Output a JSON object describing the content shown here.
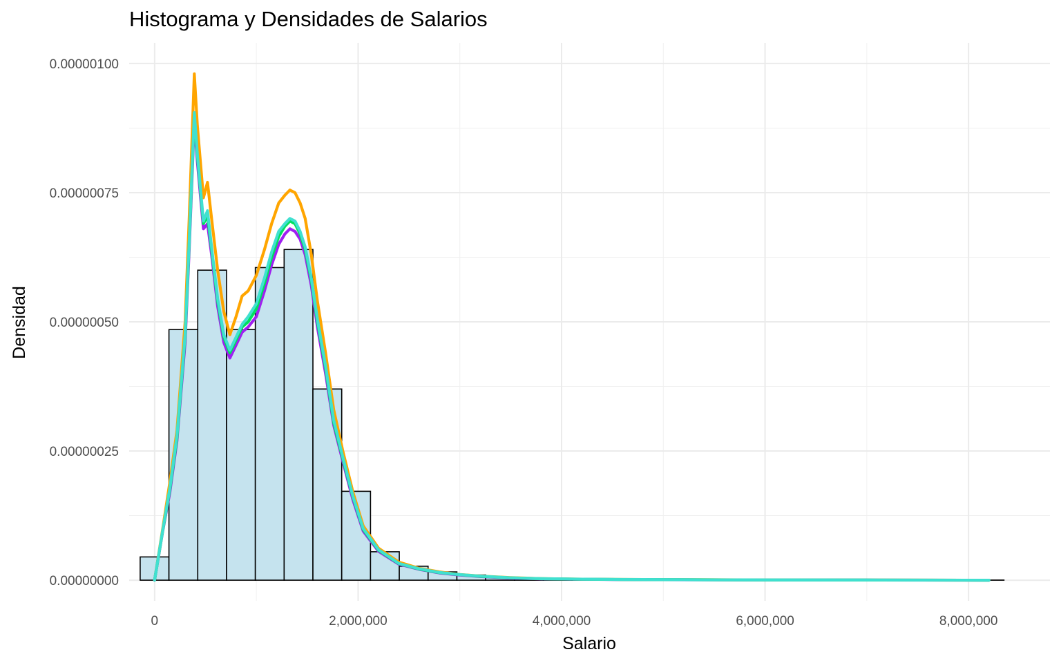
{
  "chart_data": {
    "type": "bar",
    "title": "Histograma y Densidades de Salarios",
    "xlabel": "Salario",
    "ylabel": "Densidad",
    "xlim": [
      -250000,
      8800000
    ],
    "ylim": [
      -4e-08,
      1.04e-06
    ],
    "grid": true,
    "legend": "none",
    "x_ticks": [
      {
        "value": 0,
        "label": "0"
      },
      {
        "value": 2000000,
        "label": "2,000,000"
      },
      {
        "value": 4000000,
        "label": "4,000,000"
      },
      {
        "value": 6000000,
        "label": "6,000,000"
      },
      {
        "value": 8000000,
        "label": "8,000,000"
      }
    ],
    "y_ticks": [
      {
        "value": 0,
        "label": "0.00000000"
      },
      {
        "value": 2.5e-07,
        "label": "0.00000025"
      },
      {
        "value": 5e-07,
        "label": "0.00000050"
      },
      {
        "value": 7.5e-07,
        "label": "0.00000075"
      },
      {
        "value": 1e-06,
        "label": "0.00000100"
      }
    ],
    "histogram": {
      "fill": "#c5e3ee",
      "stroke": "#000000",
      "bin_width": 283000,
      "bin_starts": [
        -142000,
        141000,
        424000,
        707000,
        990000,
        1273000,
        1556000,
        1839000,
        2122000,
        2405000,
        2688000,
        2971000,
        3254000,
        3537000,
        3820000,
        4103000,
        4386000,
        4669000,
        4952000,
        5235000,
        5518000,
        5801000,
        6084000,
        6367000,
        6650000,
        6933000,
        7216000,
        7499000,
        7782000,
        8065000
      ],
      "values": [
        4.5e-08,
        4.85e-07,
        6e-07,
        4.85e-07,
        6.05e-07,
        6.4e-07,
        3.7e-07,
        1.72e-07,
        5.5e-08,
        2.7e-08,
        1.6e-08,
        1e-08,
        6e-09,
        4e-09,
        3e-09,
        2e-09,
        1.5e-09,
        1e-09,
        8e-10,
        6e-10,
        5e-10,
        4e-10,
        3e-10,
        3e-10,
        2e-10,
        2e-10,
        2e-10,
        2e-10,
        2e-10,
        2e-10
      ]
    },
    "series": [
      {
        "color": "#ffa500",
        "x": [
          0,
          80000,
          150000,
          220000,
          300000,
          340000,
          390000,
          420000,
          480000,
          520000,
          560000,
          620000,
          680000,
          740000,
          800000,
          860000,
          920000,
          1000000,
          1080000,
          1150000,
          1220000,
          1280000,
          1330000,
          1380000,
          1430000,
          1480000,
          1540000,
          1600000,
          1680000,
          1760000,
          1850000,
          1950000,
          2050000,
          2200000,
          2400000,
          2600000,
          2800000,
          3000000,
          3200000,
          3500000,
          3800000,
          4200000,
          4600000,
          5200000,
          6000000,
          7000000,
          8200000
        ],
        "y": [
          0,
          1e-07,
          1.9e-07,
          2.9e-07,
          5e-07,
          7e-07,
          9.8e-07,
          8.8e-07,
          7.4e-07,
          7.7e-07,
          7e-07,
          6e-07,
          5.2e-07,
          4.75e-07,
          5.1e-07,
          5.5e-07,
          5.6e-07,
          5.9e-07,
          6.4e-07,
          6.9e-07,
          7.3e-07,
          7.45e-07,
          7.55e-07,
          7.5e-07,
          7.3e-07,
          7e-07,
          6.3e-07,
          5.4e-07,
          4.4e-07,
          3.3e-07,
          2.5e-07,
          1.7e-07,
          1.05e-07,
          6.2e-08,
          3.5e-08,
          2.3e-08,
          1.6e-08,
          1.1e-08,
          8e-09,
          5e-09,
          3e-09,
          2e-09,
          1.5e-09,
          1e-09,
          5e-10,
          3e-10,
          0
        ]
      },
      {
        "color": "#a020f0",
        "x": [
          0,
          80000,
          150000,
          220000,
          300000,
          340000,
          390000,
          420000,
          480000,
          520000,
          560000,
          620000,
          680000,
          740000,
          800000,
          860000,
          920000,
          1000000,
          1080000,
          1150000,
          1220000,
          1280000,
          1330000,
          1380000,
          1430000,
          1480000,
          1540000,
          1600000,
          1680000,
          1760000,
          1850000,
          1950000,
          2050000,
          2200000,
          2400000,
          2600000,
          2800000,
          3000000,
          3200000,
          3500000,
          3800000,
          4200000,
          4600000,
          5200000,
          6000000,
          7000000,
          8200000
        ],
        "y": [
          0,
          9.5e-08,
          1.7e-07,
          2.7e-07,
          4.6e-07,
          6.4e-07,
          8.9e-07,
          8.1e-07,
          6.8e-07,
          6.9e-07,
          6.3e-07,
          5.3e-07,
          4.6e-07,
          4.3e-07,
          4.55e-07,
          4.8e-07,
          4.9e-07,
          5.1e-07,
          5.6e-07,
          6.1e-07,
          6.5e-07,
          6.7e-07,
          6.8e-07,
          6.75e-07,
          6.6e-07,
          6.3e-07,
          5.7e-07,
          4.9e-07,
          4e-07,
          3e-07,
          2.3e-07,
          1.55e-07,
          9.5e-08,
          5.6e-08,
          3.1e-08,
          2.1e-08,
          1.4e-08,
          1e-08,
          7e-09,
          4e-09,
          2.5e-09,
          1.8e-09,
          1.2e-09,
          8e-10,
          4e-10,
          2e-10,
          0
        ]
      },
      {
        "color": "#00e060",
        "x": [
          0,
          80000,
          150000,
          220000,
          300000,
          340000,
          390000,
          420000,
          480000,
          520000,
          560000,
          620000,
          680000,
          740000,
          800000,
          860000,
          920000,
          1000000,
          1080000,
          1150000,
          1220000,
          1280000,
          1330000,
          1380000,
          1430000,
          1480000,
          1540000,
          1600000,
          1680000,
          1760000,
          1850000,
          1950000,
          2050000,
          2200000,
          2400000,
          2600000,
          2800000,
          3000000,
          3200000,
          3500000,
          3800000,
          4200000,
          4600000,
          5200000,
          6000000,
          7000000,
          8200000
        ],
        "y": [
          0,
          9.6e-08,
          1.75e-07,
          2.75e-07,
          4.7e-07,
          6.5e-07,
          9e-07,
          8.2e-07,
          6.9e-07,
          7.05e-07,
          6.4e-07,
          5.4e-07,
          4.7e-07,
          4.4e-07,
          4.65e-07,
          4.9e-07,
          5e-07,
          5.25e-07,
          5.75e-07,
          6.25e-07,
          6.65e-07,
          6.85e-07,
          6.95e-07,
          6.9e-07,
          6.7e-07,
          6.4e-07,
          5.8e-07,
          5e-07,
          4.1e-07,
          3.05e-07,
          2.35e-07,
          1.6e-07,
          9.8e-08,
          5.8e-08,
          3.2e-08,
          2.15e-08,
          1.45e-08,
          1.05e-08,
          7.5e-09,
          4.5e-09,
          2.8e-09,
          1.9e-09,
          1.3e-09,
          9e-10,
          4e-10,
          2e-10,
          0
        ]
      },
      {
        "color": "#40e0d0",
        "x": [
          0,
          80000,
          150000,
          220000,
          300000,
          340000,
          390000,
          420000,
          480000,
          520000,
          560000,
          620000,
          680000,
          740000,
          800000,
          860000,
          920000,
          1000000,
          1080000,
          1150000,
          1220000,
          1280000,
          1330000,
          1380000,
          1430000,
          1480000,
          1540000,
          1600000,
          1680000,
          1760000,
          1850000,
          1950000,
          2050000,
          2200000,
          2400000,
          2600000,
          2800000,
          3000000,
          3200000,
          3500000,
          3800000,
          4200000,
          4600000,
          5200000,
          6000000,
          7000000,
          8200000
        ],
        "y": [
          0,
          9.7e-08,
          1.78e-07,
          2.8e-07,
          4.75e-07,
          6.55e-07,
          9.05e-07,
          8.25e-07,
          6.95e-07,
          7.15e-07,
          6.45e-07,
          5.45e-07,
          4.75e-07,
          4.45e-07,
          4.7e-07,
          4.95e-07,
          5.1e-07,
          5.35e-07,
          5.85e-07,
          6.35e-07,
          6.75e-07,
          6.9e-07,
          7e-07,
          6.95e-07,
          6.75e-07,
          6.45e-07,
          5.85e-07,
          5.05e-07,
          4.15e-07,
          3.1e-07,
          2.38e-07,
          1.62e-07,
          1e-07,
          5.9e-08,
          3.25e-08,
          2.2e-08,
          1.5e-08,
          1.08e-08,
          7.8e-09,
          4.7e-09,
          2.9e-09,
          2e-09,
          1.4e-09,
          9e-10,
          5e-10,
          3e-10,
          0
        ]
      }
    ]
  }
}
